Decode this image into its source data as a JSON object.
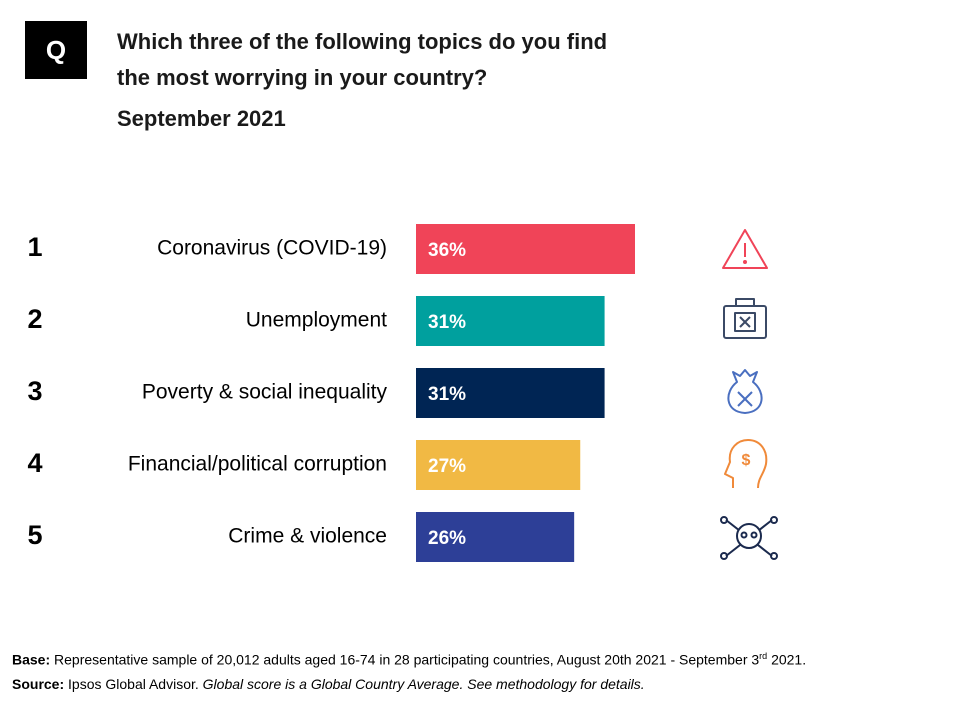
{
  "badge": "Q",
  "chart_data": {
    "type": "bar",
    "orientation": "horizontal",
    "title": "Which three of the following topics do you find the most worrying in your country?",
    "subtitle": "September 2021",
    "ranks": [
      "1",
      "2",
      "3",
      "4",
      "5"
    ],
    "categories": [
      "Coronavirus (COVID-19)",
      "Unemployment",
      "Poverty & social inequality",
      "Financial/political corruption",
      "Crime & violence"
    ],
    "values": [
      36,
      31,
      31,
      27,
      26
    ],
    "value_labels": [
      "36%",
      "31%",
      "31%",
      "27%",
      "26%"
    ],
    "colors": [
      "#f04458",
      "#00a09e",
      "#002554",
      "#f1b944",
      "#2d3f97"
    ]
  },
  "footer": {
    "base_label": "Base:",
    "base_text": "Representative sample of 20,012 adults aged 16-74 in 28 participating countries, August 20th 2021 - September 3",
    "base_sup": "rd",
    "base_end": " 2021.",
    "source_label": "Source:",
    "source_text": "Ipsos Global Advisor.",
    "source_note": "Global score is a Global Country Average. See methodology for details."
  }
}
